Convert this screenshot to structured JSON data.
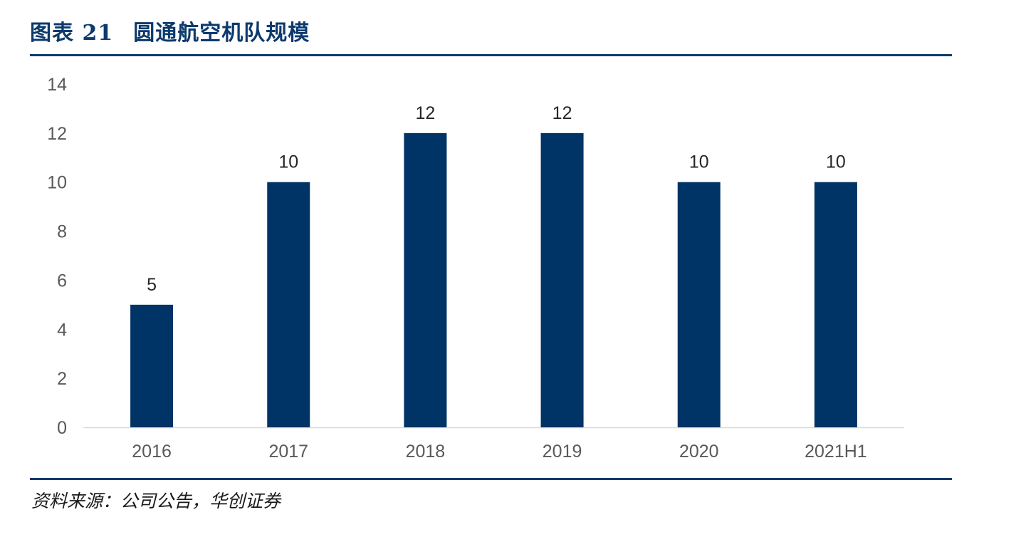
{
  "figure": {
    "label": "图表 21",
    "title": "圆通航空机队规模",
    "source": "资料来源：公司公告，华创证券"
  },
  "colors": {
    "bar": "#003366",
    "rule": "#0d3a6e",
    "tick_text": "#595959",
    "label_text": "#262626",
    "axis": "#d9d9d9"
  },
  "chart_data": {
    "type": "bar",
    "categories": [
      "2016",
      "2017",
      "2018",
      "2019",
      "2020",
      "2021H1"
    ],
    "values": [
      5,
      10,
      12,
      12,
      10,
      10
    ],
    "data_labels": [
      "5",
      "10",
      "12",
      "12",
      "10",
      "10"
    ],
    "ylim": [
      0,
      14
    ],
    "yticks": [
      "0",
      "2",
      "4",
      "6",
      "8",
      "10",
      "12",
      "14"
    ],
    "grid": false,
    "legend": "none",
    "xlabel": "",
    "ylabel": ""
  }
}
